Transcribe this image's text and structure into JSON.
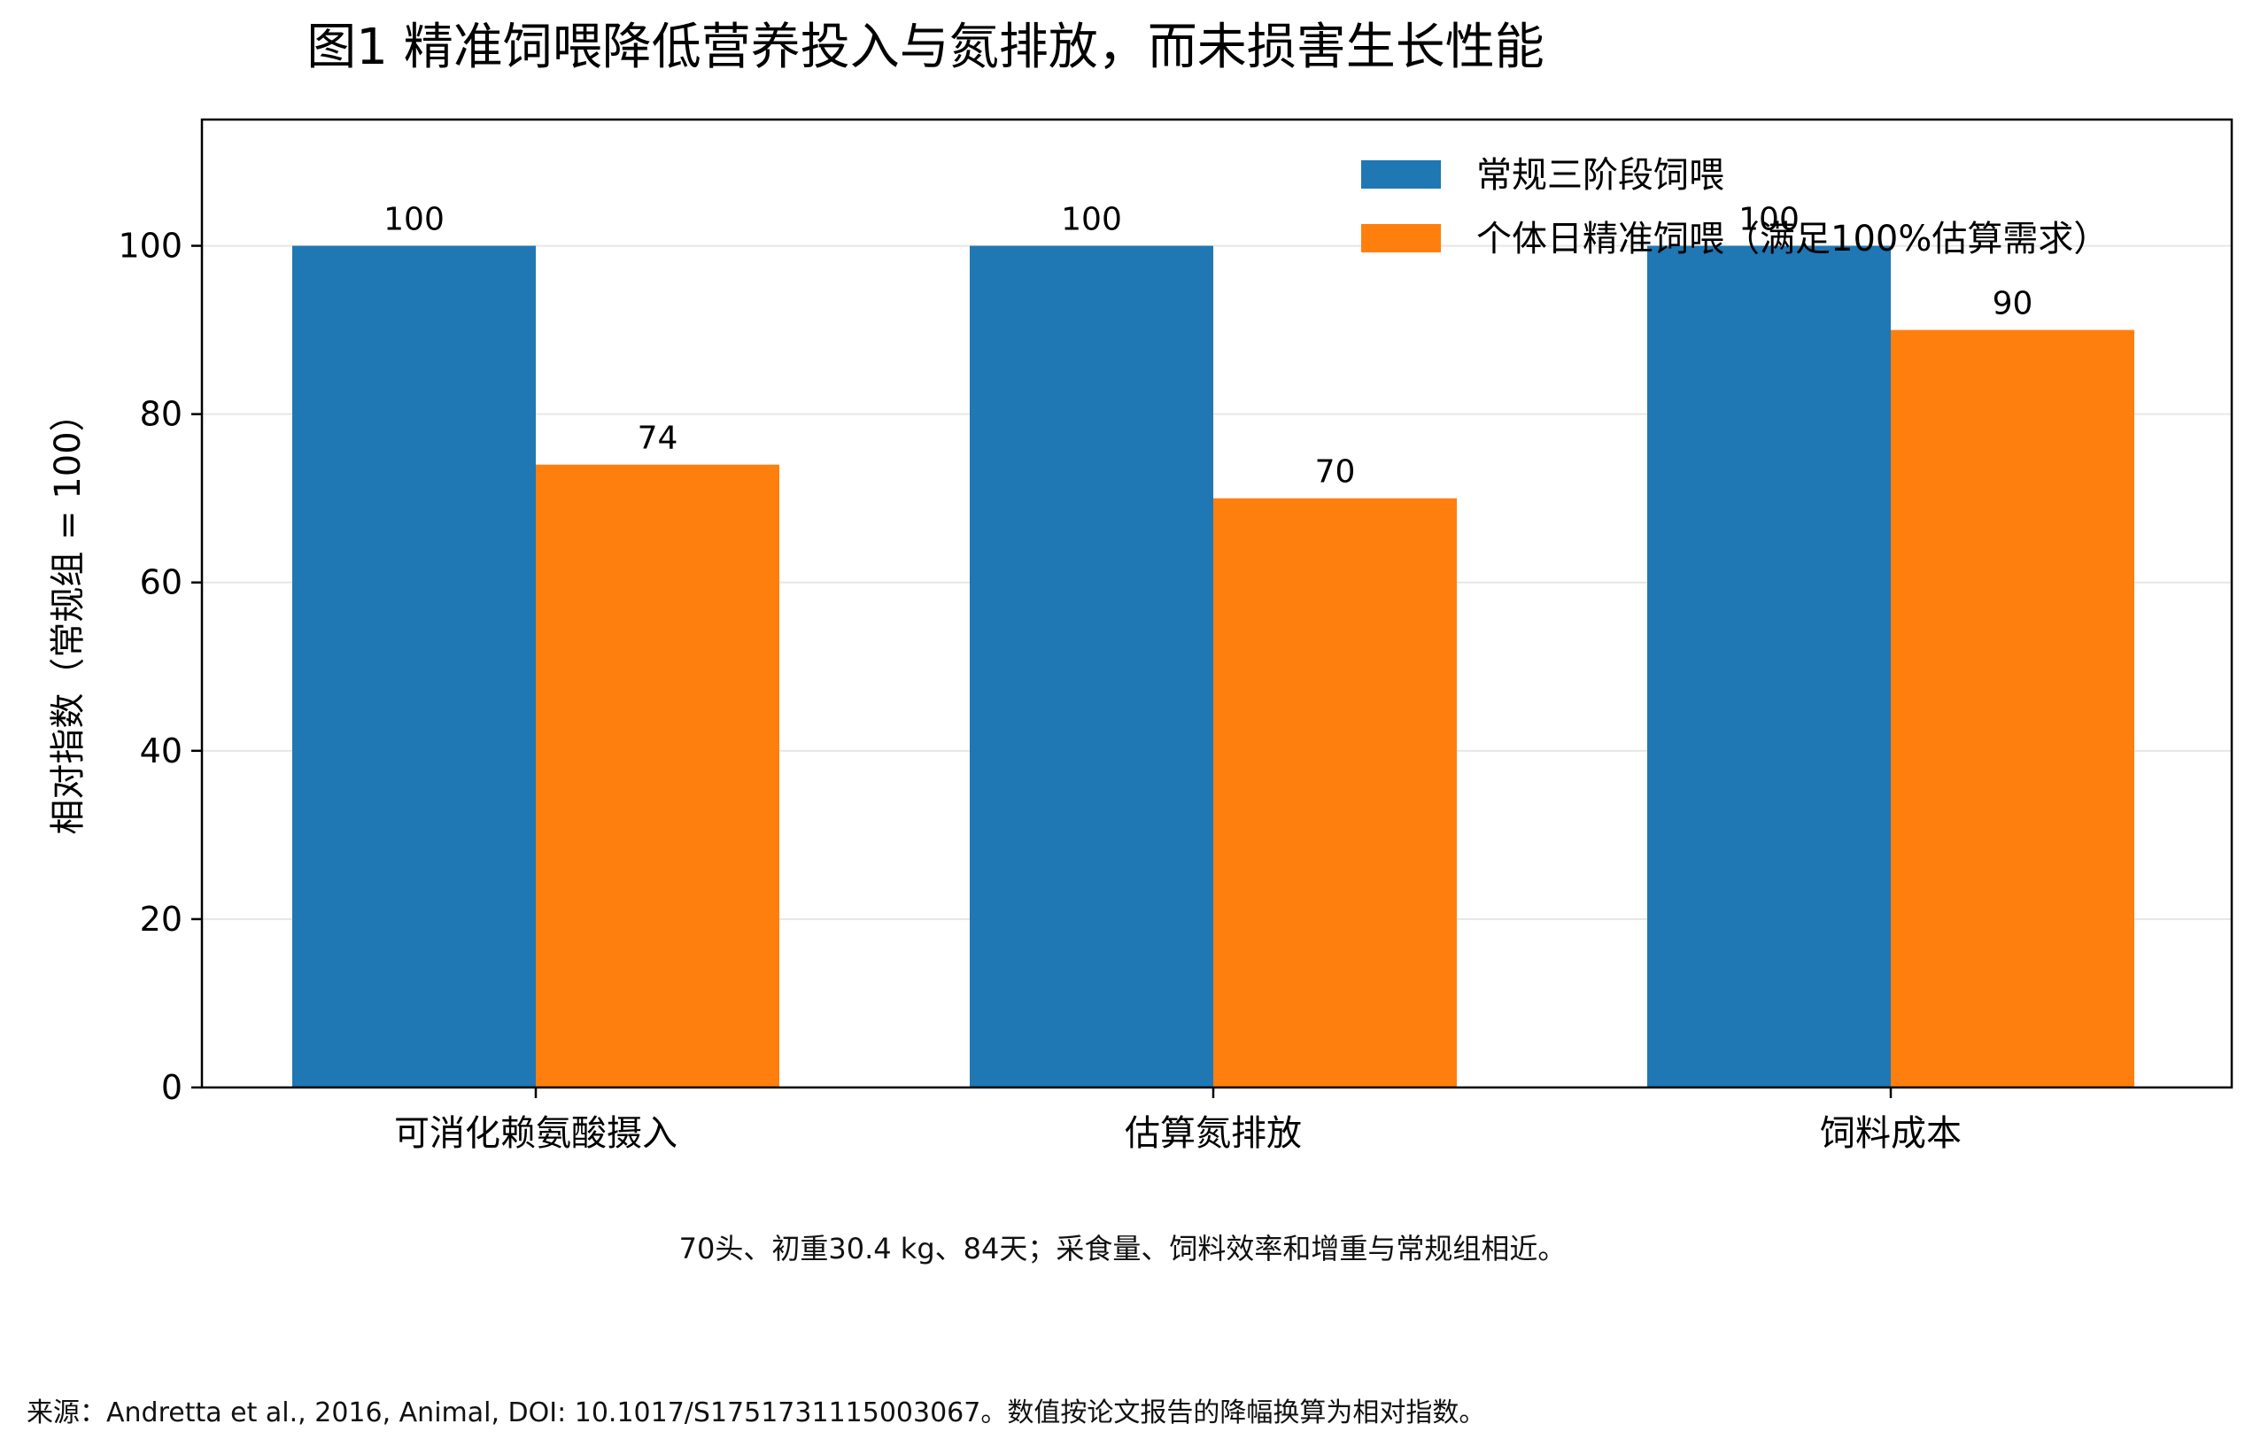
{
  "chart_data": {
    "type": "bar",
    "title": "图1 精准饲喂降低营养投入与氮排放，而未损害生长性能",
    "ylabel": "相对指数（常规组 = 100）",
    "xlabel": "",
    "categories": [
      "可消化赖氨酸摄入",
      "估算氮排放",
      "饲料成本"
    ],
    "series": [
      {
        "name": "常规三阶段饲喂",
        "values": [
          100,
          100,
          100
        ],
        "color": "#1f77b4"
      },
      {
        "name": "个体日精准饲喂（满足100%估算需求）",
        "values": [
          74,
          70,
          90
        ],
        "color": "#ff7f0e"
      }
    ],
    "ylim": [
      0,
      115
    ],
    "yticks": [
      0,
      20,
      40,
      60,
      80,
      100
    ],
    "grid": true,
    "legend_position": "top-right"
  },
  "note": "70头、初重30.4 kg、84天；采食量、饲料效率和增重与常规组相近。",
  "source": "来源：Andretta et al., 2016, Animal, DOI: 10.1017/S1751731115003067。数值按论文报告的降幅换算为相对指数。"
}
